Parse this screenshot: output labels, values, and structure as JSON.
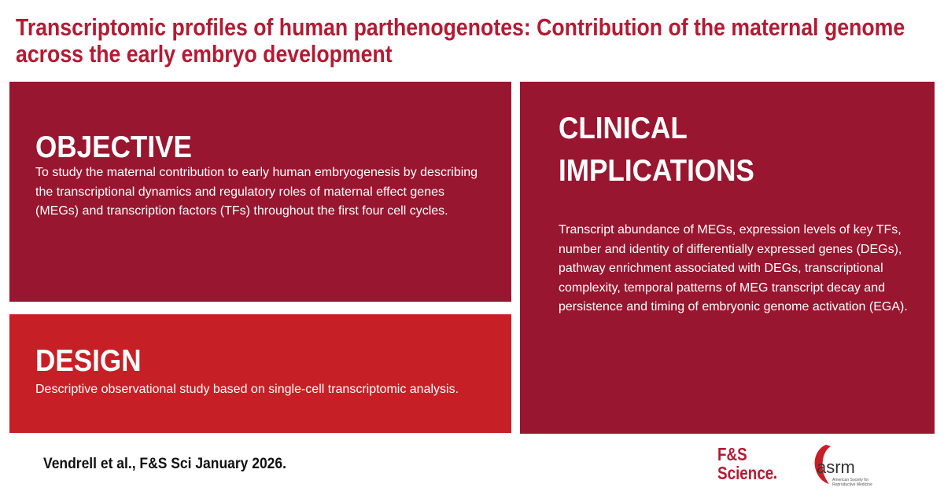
{
  "title": "Transcriptomic profiles of human parthenogenotes: Contribution of the maternal genome across the early embryo development",
  "objective": {
    "heading": "OBJECTIVE",
    "text": "To study the maternal contribution to early human embryogenesis by describing the transcriptional dynamics and regulatory roles of maternal effect genes (MEGs) and transcription factors (TFs) throughout the first four cell cycles."
  },
  "design": {
    "heading": "DESIGN",
    "text": "Descriptive observational study based on single-cell transcriptomic analysis."
  },
  "clinical": {
    "heading": "CLINICAL IMPLICATIONS",
    "text": "Transcript abundance of MEGs, expression levels of key TFs, number and identity of differentially expressed genes (DEGs), pathway enrichment associated with DEGs, transcriptional complexity, temporal patterns of MEG transcript decay and persistence and timing of embryonic genome activation (EGA)."
  },
  "citation": "Vendrell et al., F&S Sci January 2026.",
  "logos": {
    "fs_line1": "F&S",
    "fs_line2": "Science",
    "asrm_name": "asrm",
    "asrm_sub1": "American Society for",
    "asrm_sub2": "Reproductive Medicine"
  },
  "colors": {
    "title": "#b31b34",
    "dark_panel": "#98162f",
    "bright_panel": "#c71f26"
  }
}
